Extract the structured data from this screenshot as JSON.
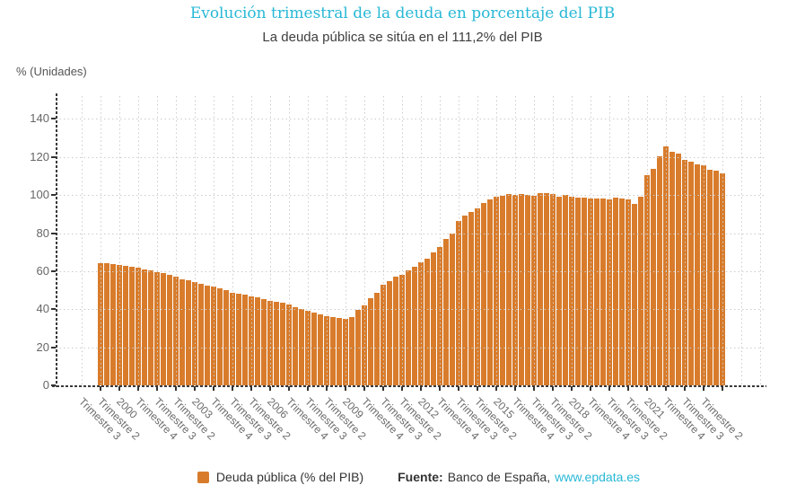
{
  "header": {
    "title": "Evolución trimestral de la deuda en porcentaje del PIB",
    "subtitle": "La deuda pública se sitúa en el 111,2% del PIB"
  },
  "colors": {
    "bar": "#d87c2c",
    "title": "#28b8d6",
    "link": "#28b8d6",
    "subtitle_text": "#3e3e3e",
    "axis_line": "#3a3a3a",
    "grid": "#cccccc",
    "tick_label": "#666666"
  },
  "legend": {
    "series_label": "Deuda pública (% del PIB)",
    "source_label": "Fuente:",
    "source_text": "Banco de España,",
    "source_link": "www.epdata.es"
  },
  "chart_data": {
    "type": "bar",
    "title": "Evolución trimestral de la deuda en porcentaje del PIB",
    "subtitle": "La deuda pública se sitúa en el 111,2% del PIB",
    "series_name": "Deuda pública (% del PIB)",
    "xlabel": "",
    "ylabel": "% (Unidades)",
    "ylim": [
      0,
      152
    ],
    "yticks": [
      0,
      20,
      40,
      60,
      80,
      100,
      120,
      140
    ],
    "grid": "dotted",
    "legend_position": "bottom",
    "x_start": "1998 Trimestre 3",
    "x_end": "2023 Trimestre 2",
    "x_tick_every": 3,
    "x_tick_labels": [
      "Trimestre 3",
      "Trimestre 2",
      "2000",
      "Trimestre 4",
      "Trimestre 3",
      "Trimestre 2",
      "2003",
      "Trimestre 4",
      "Trimestre 3",
      "Trimestre 2",
      "2006",
      "Trimestre 4",
      "Trimestre 3",
      "Trimestre 2",
      "2009",
      "Trimestre 4",
      "Trimestre 3",
      "Trimestre 2",
      "2012",
      "Trimestre 4",
      "Trimestre 3",
      "Trimestre 2",
      "2015",
      "Trimestre 4",
      "Trimestre 3",
      "Trimestre 2",
      "2018",
      "Trimestre 4",
      "Trimestre 3",
      "Trimestre 2",
      "2021",
      "Trimestre 4",
      "Trimestre 3",
      "Trimestre 2"
    ],
    "values": [
      64.4,
      64.1,
      63.8,
      63.3,
      62.8,
      62.4,
      62.0,
      61.1,
      60.4,
      59.4,
      58.8,
      57.9,
      57.3,
      55.6,
      55.2,
      54.2,
      53.5,
      52.6,
      51.9,
      51.0,
      50.1,
      48.8,
      48.3,
      47.6,
      46.9,
      46.3,
      45.5,
      44.6,
      43.7,
      43.2,
      42.4,
      41.3,
      40.3,
      39.3,
      38.4,
      37.3,
      36.5,
      35.8,
      35.3,
      34.8,
      35.7,
      39.5,
      42.0,
      45.9,
      48.7,
      52.8,
      54.7,
      56.9,
      58.2,
      60.5,
      62.5,
      64.6,
      66.5,
      69.9,
      72.9,
      77.0,
      79.9,
      86.3,
      89.0,
      91.3,
      92.9,
      95.8,
      97.5,
      99.0,
      99.5,
      100.7,
      100.0,
      100.5,
      100.1,
      99.7,
      101.0,
      101.1,
      100.5,
      99.2,
      100.0,
      99.2,
      98.7,
      98.6,
      98.4,
      98.1,
      98.4,
      97.8,
      98.7,
      98.4,
      97.6,
      95.5,
      99.3,
      110.3,
      114.0,
      120.3,
      125.7,
      122.9,
      121.6,
      118.3,
      117.7,
      116.1,
      115.6,
      113.2,
      112.8,
      111.2
    ]
  }
}
